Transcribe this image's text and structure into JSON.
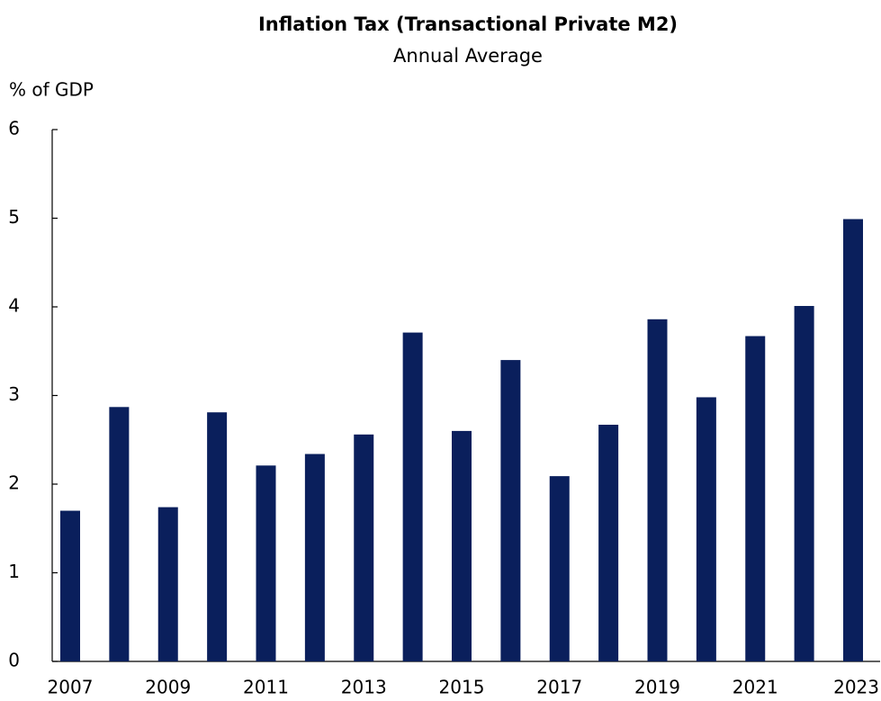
{
  "chart_data": {
    "type": "bar",
    "title": "Inflation Tax (Transactional Private M2)",
    "subtitle": "Annual Average",
    "y_label": "% of GDP",
    "categories": [
      "2007",
      null,
      "2009",
      null,
      "2011",
      null,
      "2013",
      null,
      "2015",
      null,
      "2017",
      null,
      "2019",
      null,
      "2021",
      null,
      "2023"
    ],
    "values": [
      1.7,
      2.87,
      1.74,
      2.81,
      2.21,
      2.34,
      2.56,
      3.71,
      2.6,
      3.4,
      2.09,
      2.67,
      3.86,
      2.98,
      3.67,
      4.01,
      4.99
    ],
    "color": "#0a1f5c",
    "ylim": [
      0,
      6
    ],
    "yticks": [
      0,
      1,
      2,
      3,
      4,
      5,
      6
    ],
    "grid": false
  }
}
